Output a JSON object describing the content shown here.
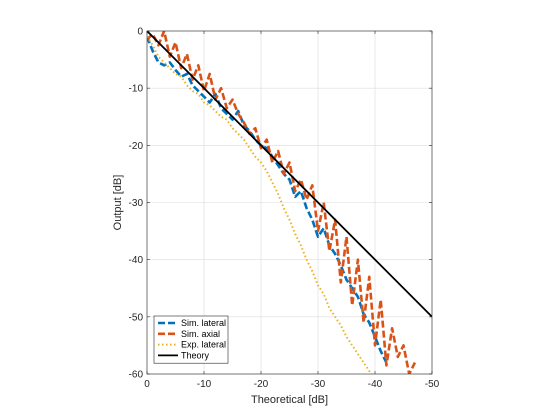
{
  "chart_data": {
    "type": "line",
    "xlabel": "Theoretical [dB]",
    "ylabel": "Output [dB]",
    "xlim": [
      0,
      -50
    ],
    "ylim": [
      -60,
      0
    ],
    "x_ticks": [
      0,
      -10,
      -20,
      -30,
      -40,
      -50
    ],
    "y_ticks": [
      0,
      -10,
      -20,
      -30,
      -40,
      -50,
      -60
    ],
    "x_tick_labels": [
      "0",
      "-10",
      "-20",
      "-30",
      "-40",
      "-50"
    ],
    "y_tick_labels": [
      "0",
      "-10",
      "-20",
      "-30",
      "-40",
      "-50",
      "-60"
    ],
    "grid": true,
    "legend_position": "bottom-left",
    "series": [
      {
        "name": "Sim. lateral",
        "color": "#0072BD",
        "style": "dashed",
        "x": [
          0,
          -1,
          -2,
          -3,
          -4,
          -5,
          -6,
          -7,
          -8,
          -9,
          -10,
          -11,
          -12,
          -13,
          -14,
          -15,
          -16,
          -17,
          -18,
          -19,
          -20,
          -21,
          -22,
          -23,
          -24,
          -25,
          -26,
          -27,
          -28,
          -29,
          -30,
          -31,
          -32,
          -33,
          -34,
          -35,
          -36,
          -37,
          -38,
          -39,
          -40,
          -41,
          -42
        ],
        "y": [
          -1.0,
          -3.5,
          -5.5,
          -6.0,
          -5.5,
          -6.8,
          -8.0,
          -7.5,
          -9.5,
          -10.5,
          -11.5,
          -12.5,
          -11.0,
          -13.5,
          -14.5,
          -15.5,
          -14.0,
          -16.5,
          -17.5,
          -19.0,
          -20.0,
          -20.5,
          -22.0,
          -23.5,
          -25.0,
          -26.0,
          -29.0,
          -28.0,
          -31.0,
          -33.0,
          -36.0,
          -34.5,
          -37.5,
          -39.0,
          -41.0,
          -43.5,
          -45.0,
          -46.5,
          -49.5,
          -51.0,
          -53.5,
          -56.0,
          -58.0
        ]
      },
      {
        "name": "Sim. axial",
        "color": "#D95319",
        "style": "dashed",
        "x": [
          0,
          -1,
          -2,
          -3,
          -4,
          -5,
          -6,
          -7,
          -8,
          -9,
          -10,
          -11,
          -12,
          -13,
          -14,
          -15,
          -16,
          -17,
          -18,
          -19,
          -20,
          -21,
          -22,
          -23,
          -24,
          -25,
          -26,
          -27,
          -28,
          -29,
          -30,
          -31,
          -32,
          -33,
          -34,
          -35,
          -36,
          -37,
          -38,
          -39,
          -40,
          -41,
          -42,
          -43,
          -44,
          -45,
          -46,
          -47
        ],
        "y": [
          -1.5,
          -0.5,
          -2.5,
          0.0,
          -4.5,
          -2.0,
          -6.5,
          -4.0,
          -8.5,
          -6.0,
          -10.5,
          -7.5,
          -12.0,
          -10.0,
          -13.5,
          -12.0,
          -14.5,
          -16.0,
          -18.0,
          -17.0,
          -20.5,
          -19.0,
          -23.0,
          -21.0,
          -25.0,
          -23.0,
          -28.0,
          -26.0,
          -29.5,
          -27.0,
          -35.0,
          -30.0,
          -38.5,
          -33.0,
          -44.0,
          -36.0,
          -48.0,
          -40.0,
          -51.0,
          -43.0,
          -55.0,
          -47.0,
          -58.5,
          -52.0,
          -57.0,
          -55.0,
          -60.0,
          -58.0
        ]
      },
      {
        "name": "Exp. lateral",
        "color": "#EDB120",
        "style": "dotted",
        "x": [
          0,
          -1,
          -2,
          -3,
          -4,
          -5,
          -6,
          -7,
          -8,
          -9,
          -10,
          -11,
          -12,
          -13,
          -14,
          -15,
          -16,
          -17,
          -18,
          -19,
          -20,
          -21,
          -22,
          -23,
          -24,
          -25,
          -26,
          -27,
          -28,
          -29,
          -30,
          -31,
          -32,
          -33,
          -34,
          -35,
          -36,
          -37,
          -38,
          -39,
          -40
        ],
        "y": [
          -1.0,
          -2.5,
          -4.5,
          -5.5,
          -6.5,
          -7.5,
          -8.0,
          -9.5,
          -10.5,
          -11.0,
          -12.5,
          -13.0,
          -14.0,
          -15.0,
          -15.5,
          -17.0,
          -18.0,
          -19.0,
          -20.5,
          -22.0,
          -23.0,
          -24.5,
          -26.5,
          -28.5,
          -31.0,
          -33.0,
          -35.5,
          -37.5,
          -40.0,
          -42.0,
          -44.5,
          -46.0,
          -48.5,
          -50.0,
          -51.5,
          -53.5,
          -55.0,
          -56.5,
          -58.0,
          -59.5,
          -61.0
        ]
      },
      {
        "name": "Theory",
        "color": "#000000",
        "style": "solid",
        "x": [
          0,
          -50
        ],
        "y": [
          0,
          -50
        ]
      }
    ]
  }
}
